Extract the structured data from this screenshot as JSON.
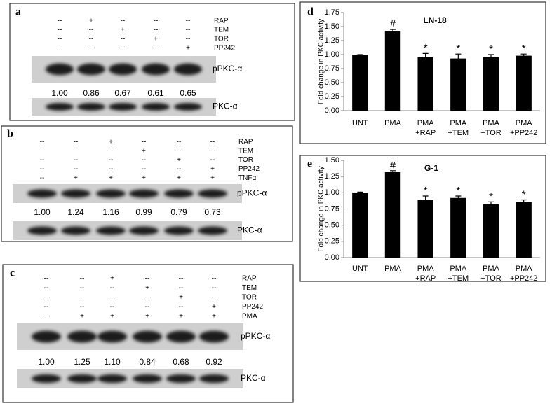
{
  "blots": [
    {
      "label": "a",
      "treatments": [
        {
          "name": "RAP",
          "marks": [
            "--",
            "+",
            "--",
            "--",
            "--"
          ]
        },
        {
          "name": "TEM",
          "marks": [
            "--",
            "--",
            "+",
            "--",
            "--"
          ]
        },
        {
          "name": "TOR",
          "marks": [
            "--",
            "--",
            "--",
            "+",
            "--"
          ]
        },
        {
          "name": "PP242",
          "marks": [
            "--",
            "--",
            "--",
            "--",
            "+"
          ]
        }
      ],
      "bands": [
        {
          "name": "pPKC-α",
          "values": [
            "1.00",
            "0.86",
            "0.67",
            "0.61",
            "0.65"
          ]
        },
        {
          "name": "PKC-α"
        }
      ]
    },
    {
      "label": "b",
      "treatments": [
        {
          "name": "RAP",
          "marks": [
            "--",
            "--",
            "+",
            "--",
            "--",
            "--"
          ]
        },
        {
          "name": "TEM",
          "marks": [
            "--",
            "--",
            "--",
            "+",
            "--",
            "--"
          ]
        },
        {
          "name": "TOR",
          "marks": [
            "--",
            "--",
            "--",
            "--",
            "+",
            "--"
          ]
        },
        {
          "name": "PP242",
          "marks": [
            "--",
            "--",
            "--",
            "--",
            "--",
            "+"
          ]
        },
        {
          "name": "TNFα",
          "marks": [
            "--",
            "+",
            "+",
            "+",
            "+",
            "+"
          ]
        }
      ],
      "bands": [
        {
          "name": "pPKC-α",
          "values": [
            "1.00",
            "1.24",
            "1.16",
            "0.99",
            "0.79",
            "0.73"
          ]
        },
        {
          "name": "PKC-α"
        }
      ]
    },
    {
      "label": "c",
      "treatments": [
        {
          "name": "RAP",
          "marks": [
            "--",
            "--",
            "+",
            "--",
            "--",
            "--"
          ]
        },
        {
          "name": "TEM",
          "marks": [
            "--",
            "--",
            "--",
            "+",
            "--",
            "--"
          ]
        },
        {
          "name": "TOR",
          "marks": [
            "--",
            "--",
            "--",
            "--",
            "+",
            "--"
          ]
        },
        {
          "name": "PP242",
          "marks": [
            "--",
            "--",
            "--",
            "--",
            "--",
            "+"
          ]
        },
        {
          "name": "PMA",
          "marks": [
            "--",
            "+",
            "+",
            "+",
            "+",
            "+"
          ]
        }
      ],
      "bands": [
        {
          "name": "pPKC-α",
          "values": [
            "1.00",
            "1.25",
            "1.10",
            "0.84",
            "0.68",
            "0.92"
          ]
        },
        {
          "name": "PKC-α"
        }
      ]
    }
  ],
  "chart_data": [
    {
      "type": "bar",
      "panel": "d",
      "title": "LN-18",
      "y_label": "Fold change in PKC activity",
      "categories": [
        "UNT",
        "PMA",
        "PMA +RAP",
        "PMA +TEM",
        "PMA +TOR",
        "PMA +PP242"
      ],
      "values": [
        1.0,
        1.42,
        0.95,
        0.93,
        0.95,
        0.98
      ],
      "errors": [
        0.0,
        0.03,
        0.07,
        0.08,
        0.05,
        0.03
      ],
      "significance": [
        null,
        "#",
        "*",
        "*",
        "*",
        "*"
      ],
      "color": "#000000",
      "ylim": [
        0,
        1.75
      ],
      "yticks": [
        {
          "value": 0,
          "label": "0.00"
        },
        {
          "value": 0.25,
          "label": "0.25"
        },
        {
          "value": 0.5,
          "label": "0.50"
        },
        {
          "value": 0.75,
          "label": "0.75"
        },
        {
          "value": 1,
          "label": "1.00"
        },
        {
          "value": 1.25,
          "label": "1.25"
        },
        {
          "value": 1.5,
          "label": "1.50"
        },
        {
          "value": 1.75,
          "label": "1.75"
        }
      ]
    },
    {
      "type": "bar",
      "panel": "e",
      "title": "G-1",
      "y_label": "Fold change in PKC activity",
      "categories": [
        "UNT",
        "PMA",
        "PMA +RAP",
        "PMA +TEM",
        "PMA +TOR",
        "PMA +PP242"
      ],
      "values": [
        1.0,
        1.32,
        0.89,
        0.92,
        0.82,
        0.86
      ],
      "errors": [
        0.01,
        0.02,
        0.06,
        0.03,
        0.04,
        0.03
      ],
      "significance": [
        null,
        "#",
        "*",
        "*",
        "*",
        "*"
      ],
      "color": "#000000",
      "ylim": [
        0,
        1.5
      ],
      "yticks": [
        {
          "value": 0,
          "label": "0.00"
        },
        {
          "value": 0.25,
          "label": "0.25"
        },
        {
          "value": 0.5,
          "label": "0.50"
        },
        {
          "value": 0.75,
          "label": "0.75"
        },
        {
          "value": 1,
          "label": "1.00"
        },
        {
          "value": 1.25,
          "label": "1.25"
        },
        {
          "value": 1.5,
          "label": "1.50"
        }
      ]
    }
  ]
}
